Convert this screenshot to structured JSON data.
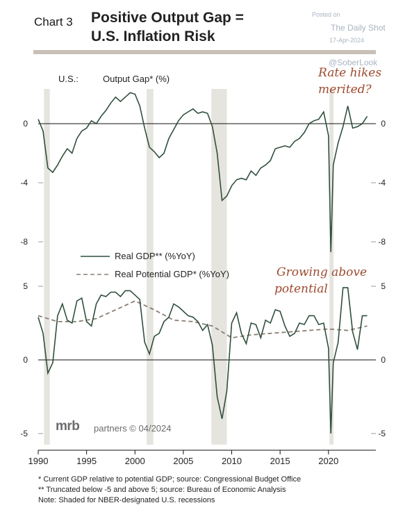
{
  "header": {
    "chart_no": "Chart 3",
    "title_line1": "Positive Output Gap =",
    "title_line2": "U.S. Inflation Risk"
  },
  "watermark": {
    "posted": "Posted on",
    "source": "The Daily Shot",
    "date": "17-Apr-2024",
    "handle": "@SoberLook"
  },
  "branding": {
    "logo": "mrb",
    "text": "partners © 04/2024"
  },
  "footnotes": [
    "*  Current GDP relative to potential GDP; source: Congressional Budget Office",
    "** Truncated below -5 and above 5; source: Bureau of Economic Analysis",
    "Note: Shaded for NBER-designated U.S. recessions"
  ],
  "colors": {
    "line": "#2f4f3c",
    "potential": "#8a7e74",
    "recession": "#e6e4df",
    "annotation": "#9e4a2e"
  },
  "chart_data": [
    {
      "type": "line",
      "panel": "top",
      "label": "U.S.:",
      "ylabel": "Output Gap* (%)",
      "annotation": [
        "Rate hikes",
        "merited?"
      ],
      "ylim": [
        -9,
        2.5
      ],
      "yticks": [
        0,
        -4,
        -8
      ],
      "xlim": [
        1990,
        2024.9
      ],
      "recessions": [
        [
          1990.6,
          1991.2
        ],
        [
          2001.2,
          2001.9
        ],
        [
          2007.9,
          2009.5
        ],
        [
          2020.1,
          2020.4
        ]
      ],
      "series": [
        {
          "name": "Output Gap",
          "x": [
            1990.0,
            1990.5,
            1991.0,
            1991.5,
            1992.0,
            1992.5,
            1993.0,
            1993.5,
            1994.0,
            1994.5,
            1995.0,
            1995.5,
            1996.0,
            1996.5,
            1997.0,
            1997.5,
            1998.0,
            1998.5,
            1999.0,
            1999.5,
            2000.0,
            2000.5,
            2001.0,
            2001.5,
            2002.0,
            2002.5,
            2003.0,
            2003.5,
            2004.0,
            2004.5,
            2005.0,
            2005.5,
            2006.0,
            2006.5,
            2007.0,
            2007.5,
            2008.0,
            2008.5,
            2009.0,
            2009.5,
            2010.0,
            2010.5,
            2011.0,
            2011.5,
            2012.0,
            2012.5,
            2013.0,
            2013.5,
            2014.0,
            2014.5,
            2015.0,
            2015.5,
            2016.0,
            2016.5,
            2017.0,
            2017.5,
            2018.0,
            2018.5,
            2019.0,
            2019.5,
            2020.0,
            2020.25,
            2020.5,
            2021.0,
            2021.5,
            2022.0,
            2022.5,
            2023.0,
            2023.5,
            2024.0
          ],
          "y": [
            0.3,
            -0.5,
            -3.0,
            -3.3,
            -2.8,
            -2.2,
            -1.7,
            -2.0,
            -1.0,
            -0.5,
            -0.3,
            0.2,
            0.0,
            0.5,
            0.9,
            1.4,
            1.8,
            1.5,
            1.8,
            2.1,
            2.0,
            1.2,
            -0.3,
            -1.6,
            -1.9,
            -2.3,
            -2.0,
            -1.0,
            -0.4,
            0.2,
            0.6,
            0.8,
            1.0,
            0.7,
            0.8,
            0.7,
            -0.2,
            -2.0,
            -5.2,
            -4.9,
            -4.2,
            -3.8,
            -3.7,
            -3.8,
            -3.2,
            -3.5,
            -3.0,
            -2.8,
            -2.5,
            -1.7,
            -1.6,
            -1.5,
            -1.6,
            -1.2,
            -1.0,
            -0.6,
            0.0,
            0.2,
            0.3,
            0.8,
            -0.8,
            -8.7,
            -2.8,
            -1.3,
            -0.2,
            1.2,
            -0.3,
            -0.2,
            0.0,
            0.5
          ]
        }
      ]
    },
    {
      "type": "line",
      "panel": "bottom",
      "ylim": [
        -5.5,
        5.5
      ],
      "yticks": [
        5,
        0,
        -5
      ],
      "xlim": [
        1990,
        2024.9
      ],
      "xticks": [
        1990,
        1995,
        2000,
        2005,
        2010,
        2015,
        2020
      ],
      "annotation": [
        "Growing above",
        "potential"
      ],
      "series": [
        {
          "name": "Real GDP** (%YoY)",
          "x": [
            1990.0,
            1990.5,
            1991.0,
            1991.5,
            1992.0,
            1992.5,
            1993.0,
            1993.5,
            1994.0,
            1994.5,
            1995.0,
            1995.5,
            1996.0,
            1996.5,
            1997.0,
            1997.5,
            1998.0,
            1998.5,
            1999.0,
            1999.5,
            2000.0,
            2000.5,
            2001.0,
            2001.5,
            2002.0,
            2002.5,
            2003.0,
            2003.5,
            2004.0,
            2004.5,
            2005.0,
            2005.5,
            2006.0,
            2006.5,
            2007.0,
            2007.5,
            2008.0,
            2008.5,
            2009.0,
            2009.5,
            2010.0,
            2010.5,
            2011.0,
            2011.5,
            2012.0,
            2012.5,
            2013.0,
            2013.5,
            2014.0,
            2014.5,
            2015.0,
            2015.5,
            2016.0,
            2016.5,
            2017.0,
            2017.5,
            2018.0,
            2018.5,
            2019.0,
            2019.5,
            2020.0,
            2020.25,
            2020.5,
            2021.0,
            2021.5,
            2022.0,
            2022.5,
            2023.0,
            2023.5,
            2024.0
          ],
          "y": [
            2.9,
            1.8,
            -0.9,
            -0.2,
            3.0,
            3.8,
            2.7,
            2.5,
            4.0,
            4.2,
            2.6,
            2.3,
            3.8,
            4.4,
            4.3,
            4.6,
            4.6,
            4.3,
            4.7,
            4.7,
            4.4,
            4.1,
            1.2,
            0.4,
            1.6,
            1.8,
            2.6,
            2.9,
            3.8,
            3.6,
            3.3,
            3.0,
            2.9,
            2.6,
            2.0,
            2.4,
            1.0,
            -2.5,
            -4.0,
            -2.1,
            2.5,
            3.2,
            1.8,
            1.1,
            2.5,
            2.4,
            1.5,
            2.7,
            2.5,
            3.4,
            3.3,
            2.3,
            1.6,
            1.8,
            2.5,
            2.4,
            3.0,
            3.0,
            2.4,
            2.5,
            0.8,
            -5.0,
            -0.2,
            1.2,
            4.9,
            4.9,
            1.9,
            0.7,
            3.0,
            3.0
          ]
        },
        {
          "name": "Real Potential GDP* (%YoY)",
          "x": [
            1990,
            1992,
            1994,
            1996,
            1998,
            2000,
            2002,
            2004,
            2006,
            2008,
            2010,
            2012,
            2014,
            2016,
            2018,
            2020,
            2022,
            2024
          ],
          "y": [
            3.0,
            2.6,
            2.6,
            2.8,
            3.4,
            4.0,
            3.4,
            2.7,
            2.6,
            2.3,
            1.5,
            1.7,
            1.8,
            1.9,
            2.0,
            2.1,
            2.0,
            2.3
          ]
        }
      ]
    }
  ]
}
